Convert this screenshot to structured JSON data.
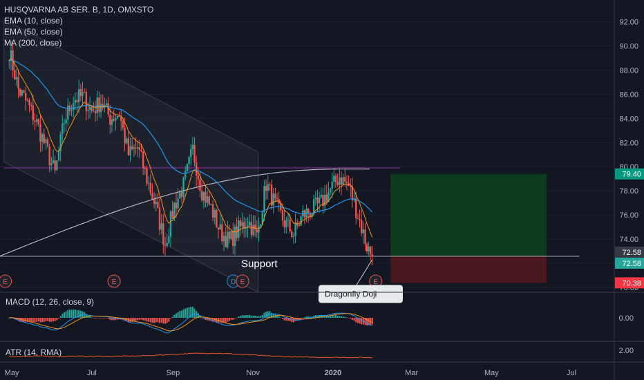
{
  "header": {
    "symbol_line": "HUSQVARNA AB SER. B, 1D, OMXSTO",
    "studies": [
      "EMA (10, close)",
      "EMA (50, close)",
      "MA (200, close)"
    ]
  },
  "colors": {
    "background": "#131722",
    "up": "#26a69a",
    "down": "#ef5350",
    "ema10": "#f7931a",
    "ema50": "#2196f3",
    "ma200": "#b2b5be",
    "target_zone": "#0d3b1f",
    "stop_zone": "#4a1620",
    "target_tag": "#089981",
    "stop_tag": "#f23645",
    "grid": "#2a2e39",
    "channel": "#2a2e39"
  },
  "chart_data": {
    "type": "candlestick",
    "symbol": "HUSQVARNA AB SER. B",
    "interval": "1D",
    "exchange": "OMXSTO",
    "x_ticks": [
      "May",
      "Jul",
      "Sep",
      "Nov",
      "2020",
      "Mar",
      "May",
      "Jul"
    ],
    "y_ticks": [
      "92.00",
      "90.00",
      "88.00",
      "86.00",
      "84.00",
      "82.00",
      "80.00",
      "78.00",
      "76.00",
      "74.00",
      "72.00",
      "70.00"
    ],
    "ylim": [
      69.6,
      93.8
    ],
    "last_price": "72.58",
    "price_tags": [
      "79.40",
      "72.58",
      "72.58",
      "70.38"
    ],
    "close_series": [
      {
        "date": "2019-04-29",
        "close": 89.6
      },
      {
        "date": "2019-05-06",
        "close": 86.4
      },
      {
        "date": "2019-05-13",
        "close": 85.2
      },
      {
        "date": "2019-05-20",
        "close": 83.6
      },
      {
        "date": "2019-05-27",
        "close": 81.6
      },
      {
        "date": "2019-06-03",
        "close": 79.4
      },
      {
        "date": "2019-06-10",
        "close": 83.8
      },
      {
        "date": "2019-06-17",
        "close": 85.6
      },
      {
        "date": "2019-06-24",
        "close": 85.8
      },
      {
        "date": "2019-07-01",
        "close": 84.6
      },
      {
        "date": "2019-07-08",
        "close": 85.4
      },
      {
        "date": "2019-07-15",
        "close": 84.0
      },
      {
        "date": "2019-07-22",
        "close": 84.4
      },
      {
        "date": "2019-07-29",
        "close": 81.0
      },
      {
        "date": "2019-08-05",
        "close": 81.6
      },
      {
        "date": "2019-08-12",
        "close": 79.0
      },
      {
        "date": "2019-08-19",
        "close": 76.6
      },
      {
        "date": "2019-08-26",
        "close": 73.6
      },
      {
        "date": "2019-09-02",
        "close": 76.8
      },
      {
        "date": "2019-09-09",
        "close": 78.4
      },
      {
        "date": "2019-09-16",
        "close": 81.4
      },
      {
        "date": "2019-09-23",
        "close": 78.0
      },
      {
        "date": "2019-09-30",
        "close": 76.6
      },
      {
        "date": "2019-10-07",
        "close": 74.6
      },
      {
        "date": "2019-10-14",
        "close": 73.8
      },
      {
        "date": "2019-10-21",
        "close": 74.8
      },
      {
        "date": "2019-10-28",
        "close": 75.6
      },
      {
        "date": "2019-11-04",
        "close": 74.2
      },
      {
        "date": "2019-11-11",
        "close": 78.6
      },
      {
        "date": "2019-11-18",
        "close": 76.8
      },
      {
        "date": "2019-11-25",
        "close": 75.4
      },
      {
        "date": "2019-12-02",
        "close": 74.4
      },
      {
        "date": "2019-12-09",
        "close": 76.0
      },
      {
        "date": "2019-12-16",
        "close": 76.4
      },
      {
        "date": "2019-12-23",
        "close": 77.0
      },
      {
        "date": "2020-01-06",
        "close": 79.2
      },
      {
        "date": "2020-01-13",
        "close": 78.4
      },
      {
        "date": "2020-01-20",
        "close": 76.0
      },
      {
        "date": "2020-01-27",
        "close": 73.4
      },
      {
        "date": "2020-01-31",
        "close": 72.58
      }
    ],
    "annotations": {
      "support_label": "Support",
      "dragonfly_label": "Dragonfly Doji",
      "earnings_marker": "E",
      "dividend_marker": "D",
      "support_level": 72.58,
      "resistance_level": 79.9,
      "long_position": {
        "entry": 72.58,
        "target": 79.4,
        "stop": 70.38
      }
    },
    "macd": {
      "label": "MACD (12, 26, close, 9)",
      "ticks": [
        "0.00"
      ],
      "ylim": [
        -1.2,
        1.2
      ]
    },
    "atr": {
      "label": "ATR (14, RMA)",
      "ticks": [
        "2.00"
      ],
      "ylim": [
        1.0,
        2.6
      ]
    },
    "grid": true
  }
}
